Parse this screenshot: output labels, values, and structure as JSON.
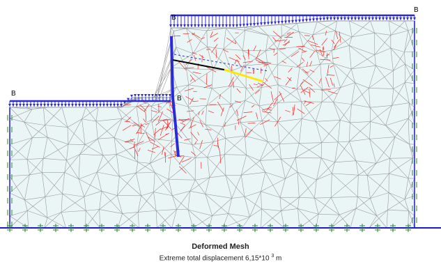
{
  "view": {
    "title": "Deformed Mesh",
    "subtitle_prefix": "Extreme total displacement 6,15*10",
    "subtitle_exponent": "3",
    "subtitle_unit": "m",
    "load_labels": [
      "B",
      "B",
      "B",
      "B"
    ]
  },
  "colors": {
    "soil_fill": "#eaf6f6",
    "mesh": "#9a9a9a",
    "plastic_points": "#ff2020",
    "load_arrows": "#2a2ad0",
    "boundary": "#1a1acc",
    "fixity_green": "#2a8a2a",
    "anchor": "#000000",
    "geogrid": "#ffe600"
  },
  "icons": {
    "load": "distributed-load-arrow-icon",
    "fixity": "fixed-support-icon"
  }
}
